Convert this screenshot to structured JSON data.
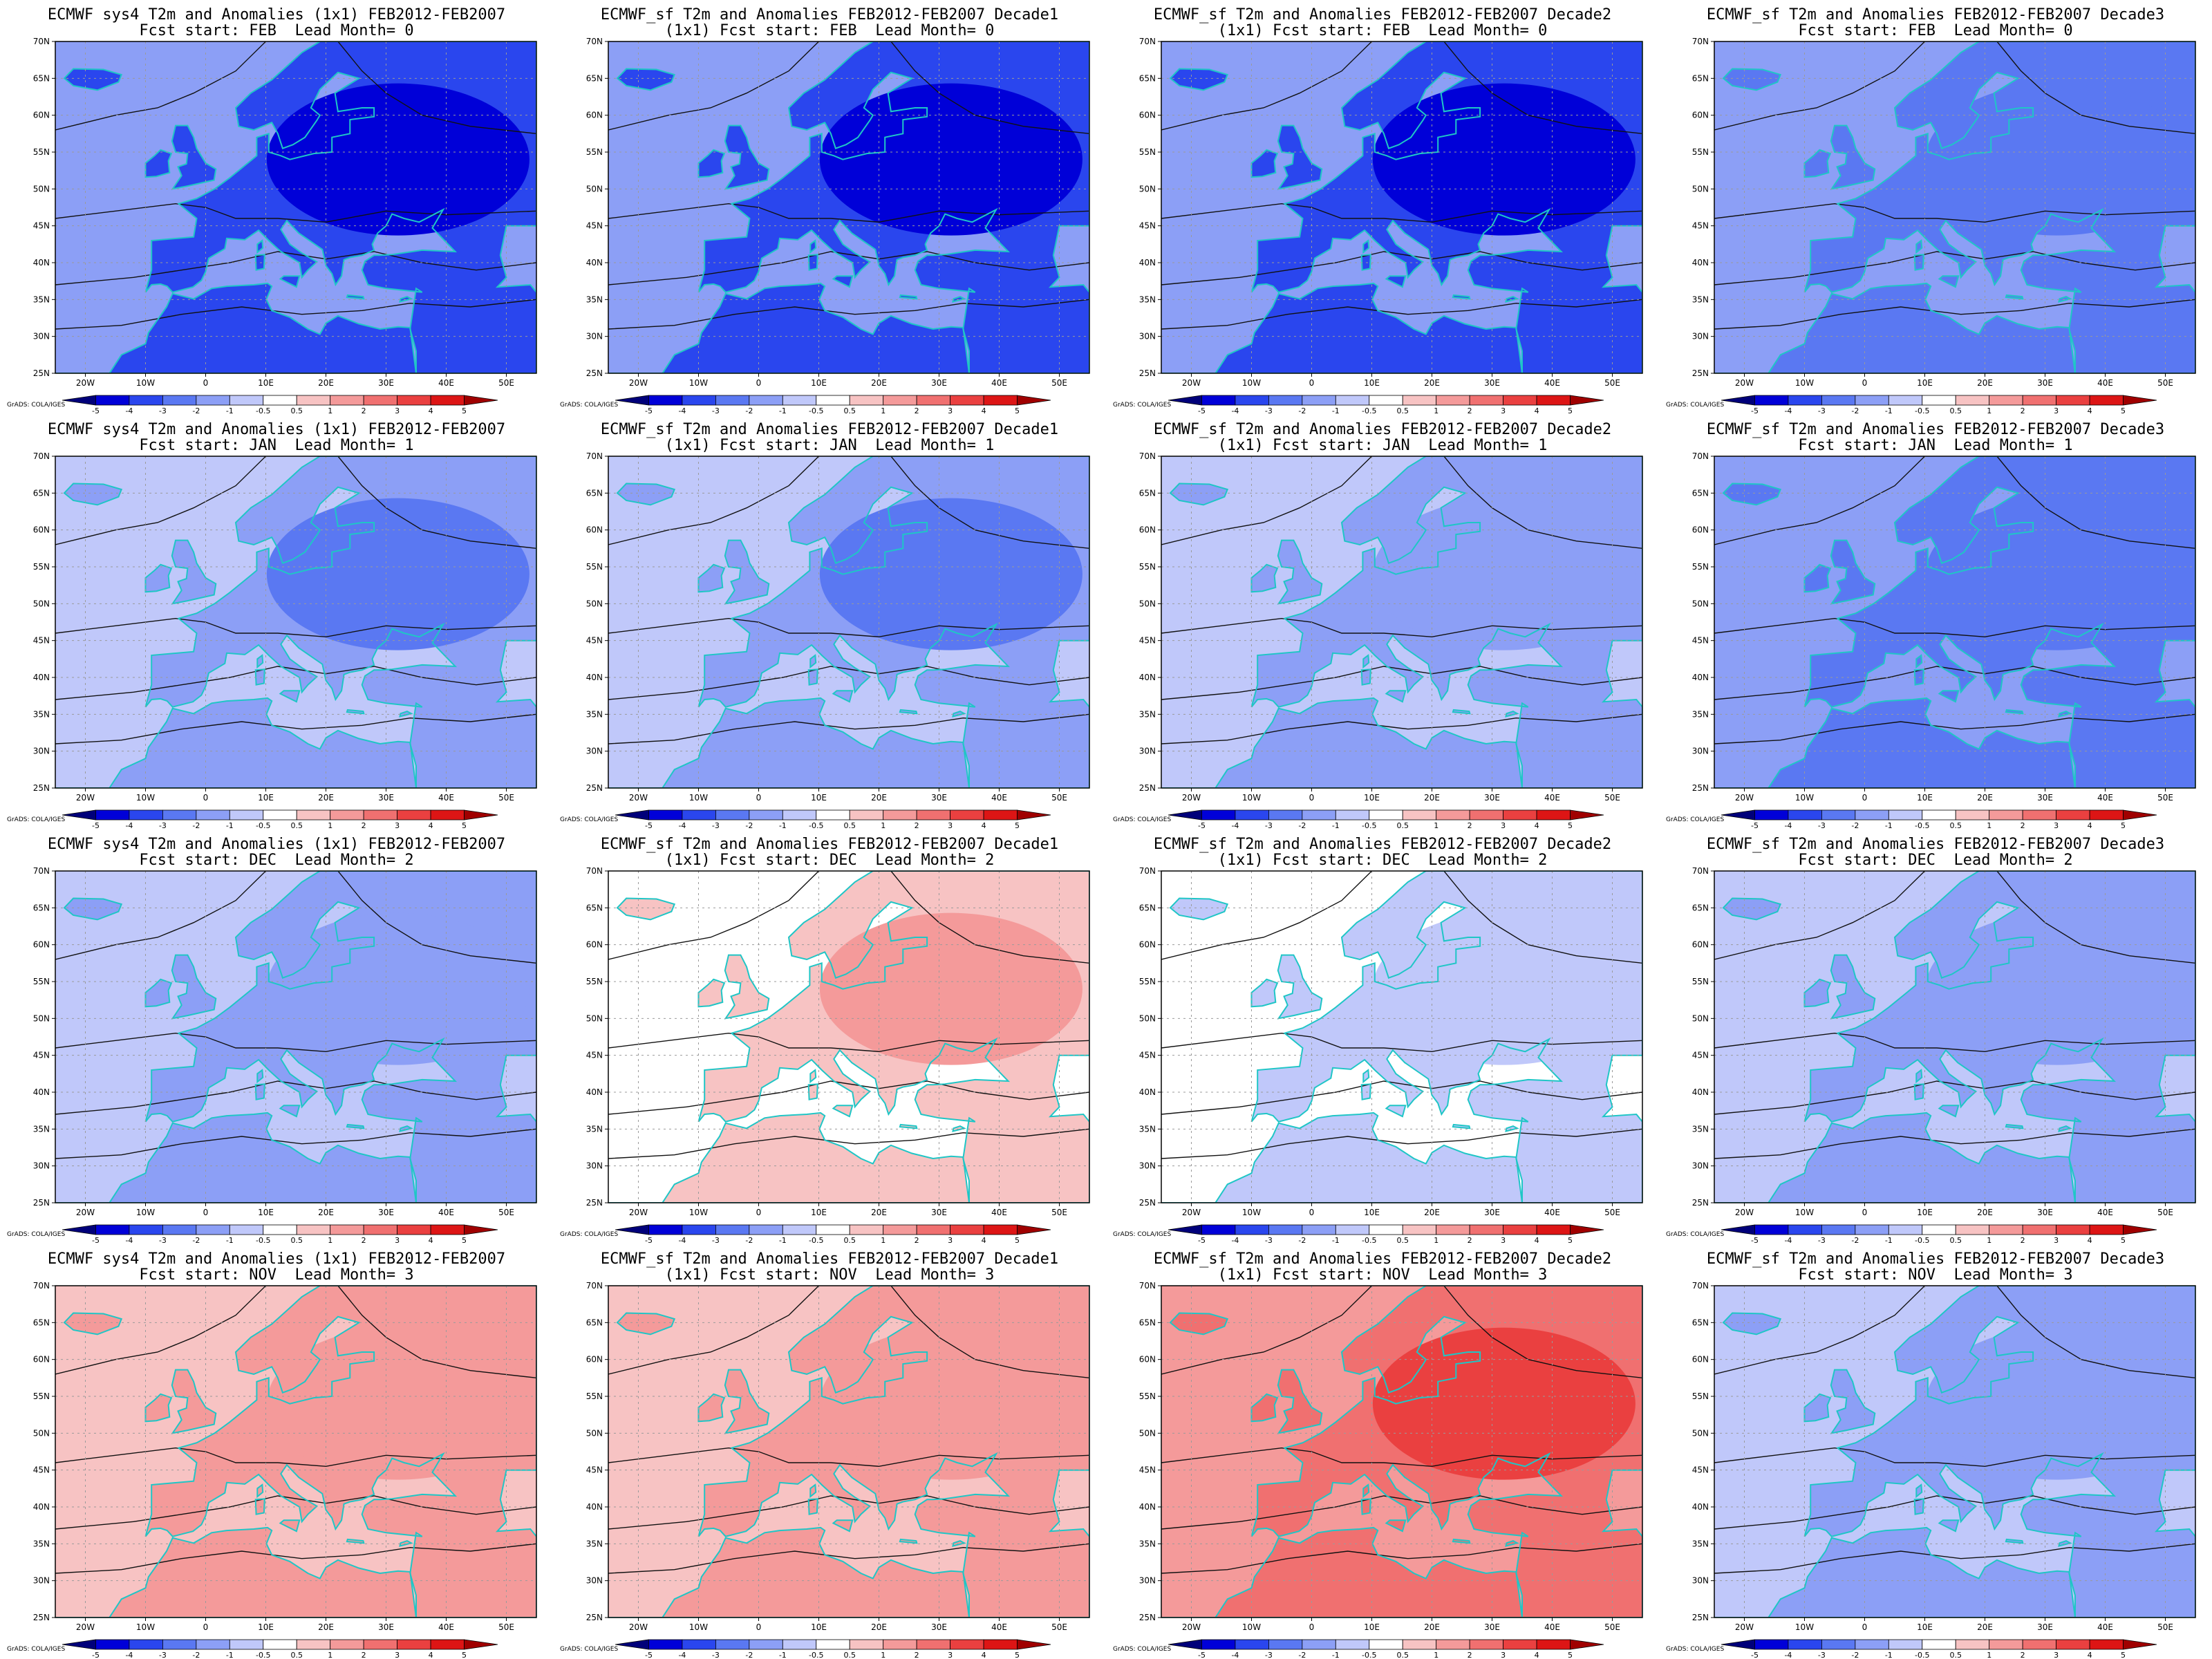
{
  "lon_ticks": [
    "20W",
    "10W",
    "0",
    "10E",
    "20E",
    "30E",
    "40E",
    "50E"
  ],
  "lat_ticks": [
    "25N",
    "30N",
    "35N",
    "40N",
    "45N",
    "50N",
    "55N",
    "60N",
    "65N",
    "70N"
  ],
  "colorbar": {
    "labels": [
      "-5",
      "-4",
      "-3",
      "-2",
      "-1",
      "-0.5",
      "0.5",
      "1",
      "2",
      "3",
      "4",
      "5"
    ],
    "colors": [
      "#00007a",
      "#0000d8",
      "#2a46ee",
      "#5a78f2",
      "#8c9ff6",
      "#c0c8fa",
      "#ffffff",
      "#f7c3c3",
      "#f49a9a",
      "#f07070",
      "#ea4040",
      "#dd1515",
      "#a00000"
    ],
    "credit": "GrADS: COLA/IGES"
  },
  "colors": {
    "contour": "#111111",
    "coast": "#1fc6c6",
    "grid": "#9a9a9a"
  },
  "panels": [
    {
      "title1": "ECMWF sys4 T2m and Anomalies (1x1) FEB2012-FEB2007",
      "title2": "Fcst start: FEB  Lead Month= 0",
      "anomaly_level": -4.5
    },
    {
      "title1": "ECMWF_sf T2m and Anomalies FEB2012-FEB2007 Decade1",
      "title2": "(1x1) Fcst start: FEB  Lead Month= 0",
      "anomaly_level": -5
    },
    {
      "title1": "ECMWF_sf T2m and Anomalies FEB2012-FEB2007 Decade2",
      "title2": "(1x1) Fcst start: FEB  Lead Month= 0",
      "anomaly_level": -4.5
    },
    {
      "title1": "ECMWF_sf T2m and Anomalies FEB2012-FEB2007 Decade3",
      "title2": "Fcst start: FEB  Lead Month= 0",
      "anomaly_level": -3
    },
    {
      "title1": "ECMWF sys4 T2m and Anomalies (1x1) FEB2012-FEB2007",
      "title2": "Fcst start: JAN  Lead Month= 1",
      "anomaly_level": -2.5
    },
    {
      "title1": "ECMWF_sf T2m and Anomalies FEB2012-FEB2007 Decade1",
      "title2": "(1x1) Fcst start: JAN  Lead Month= 1",
      "anomaly_level": -2.5
    },
    {
      "title1": "ECMWF_sf T2m and Anomalies FEB2012-FEB2007 Decade2",
      "title2": "(1x1) Fcst start: JAN  Lead Month= 1",
      "anomaly_level": -2
    },
    {
      "title1": "ECMWF_sf T2m and Anomalies FEB2012-FEB2007 Decade3",
      "title2": "Fcst start: JAN  Lead Month= 1",
      "anomaly_level": -3
    },
    {
      "title1": "ECMWF sys4 T2m and Anomalies (1x1) FEB2012-FEB2007",
      "title2": "Fcst start: DEC  Lead Month= 2",
      "anomaly_level": -1.5
    },
    {
      "title1": "ECMWF_sf T2m and Anomalies FEB2012-FEB2007 Decade1",
      "title2": "(1x1) Fcst start: DEC  Lead Month= 2",
      "anomaly_level": 1
    },
    {
      "title1": "ECMWF_sf T2m and Anomalies FEB2012-FEB2007 Decade2",
      "title2": "(1x1) Fcst start: DEC  Lead Month= 2",
      "anomaly_level": -1
    },
    {
      "title1": "ECMWF_sf T2m and Anomalies FEB2012-FEB2007 Decade3",
      "title2": "Fcst start: DEC  Lead Month= 2",
      "anomaly_level": -2
    },
    {
      "title1": "ECMWF sys4 T2m and Anomalies (1x1) FEB2012-FEB2007",
      "title2": "Fcst start: NOV  Lead Month= 3",
      "anomaly_level": 1.5
    },
    {
      "title1": "ECMWF_sf T2m and Anomalies FEB2012-FEB2007 Decade1",
      "title2": "(1x1) Fcst start: NOV  Lead Month= 3",
      "anomaly_level": 1.5
    },
    {
      "title1": "ECMWF_sf T2m and Anomalies FEB2012-FEB2007 Decade2",
      "title2": "(1x1) Fcst start: NOV  Lead Month= 3",
      "anomaly_level": 3
    },
    {
      "title1": "ECMWF_sf T2m and Anomalies FEB2012-FEB2007 Decade3",
      "title2": "Fcst start: NOV  Lead Month= 3",
      "anomaly_level": -2
    }
  ]
}
